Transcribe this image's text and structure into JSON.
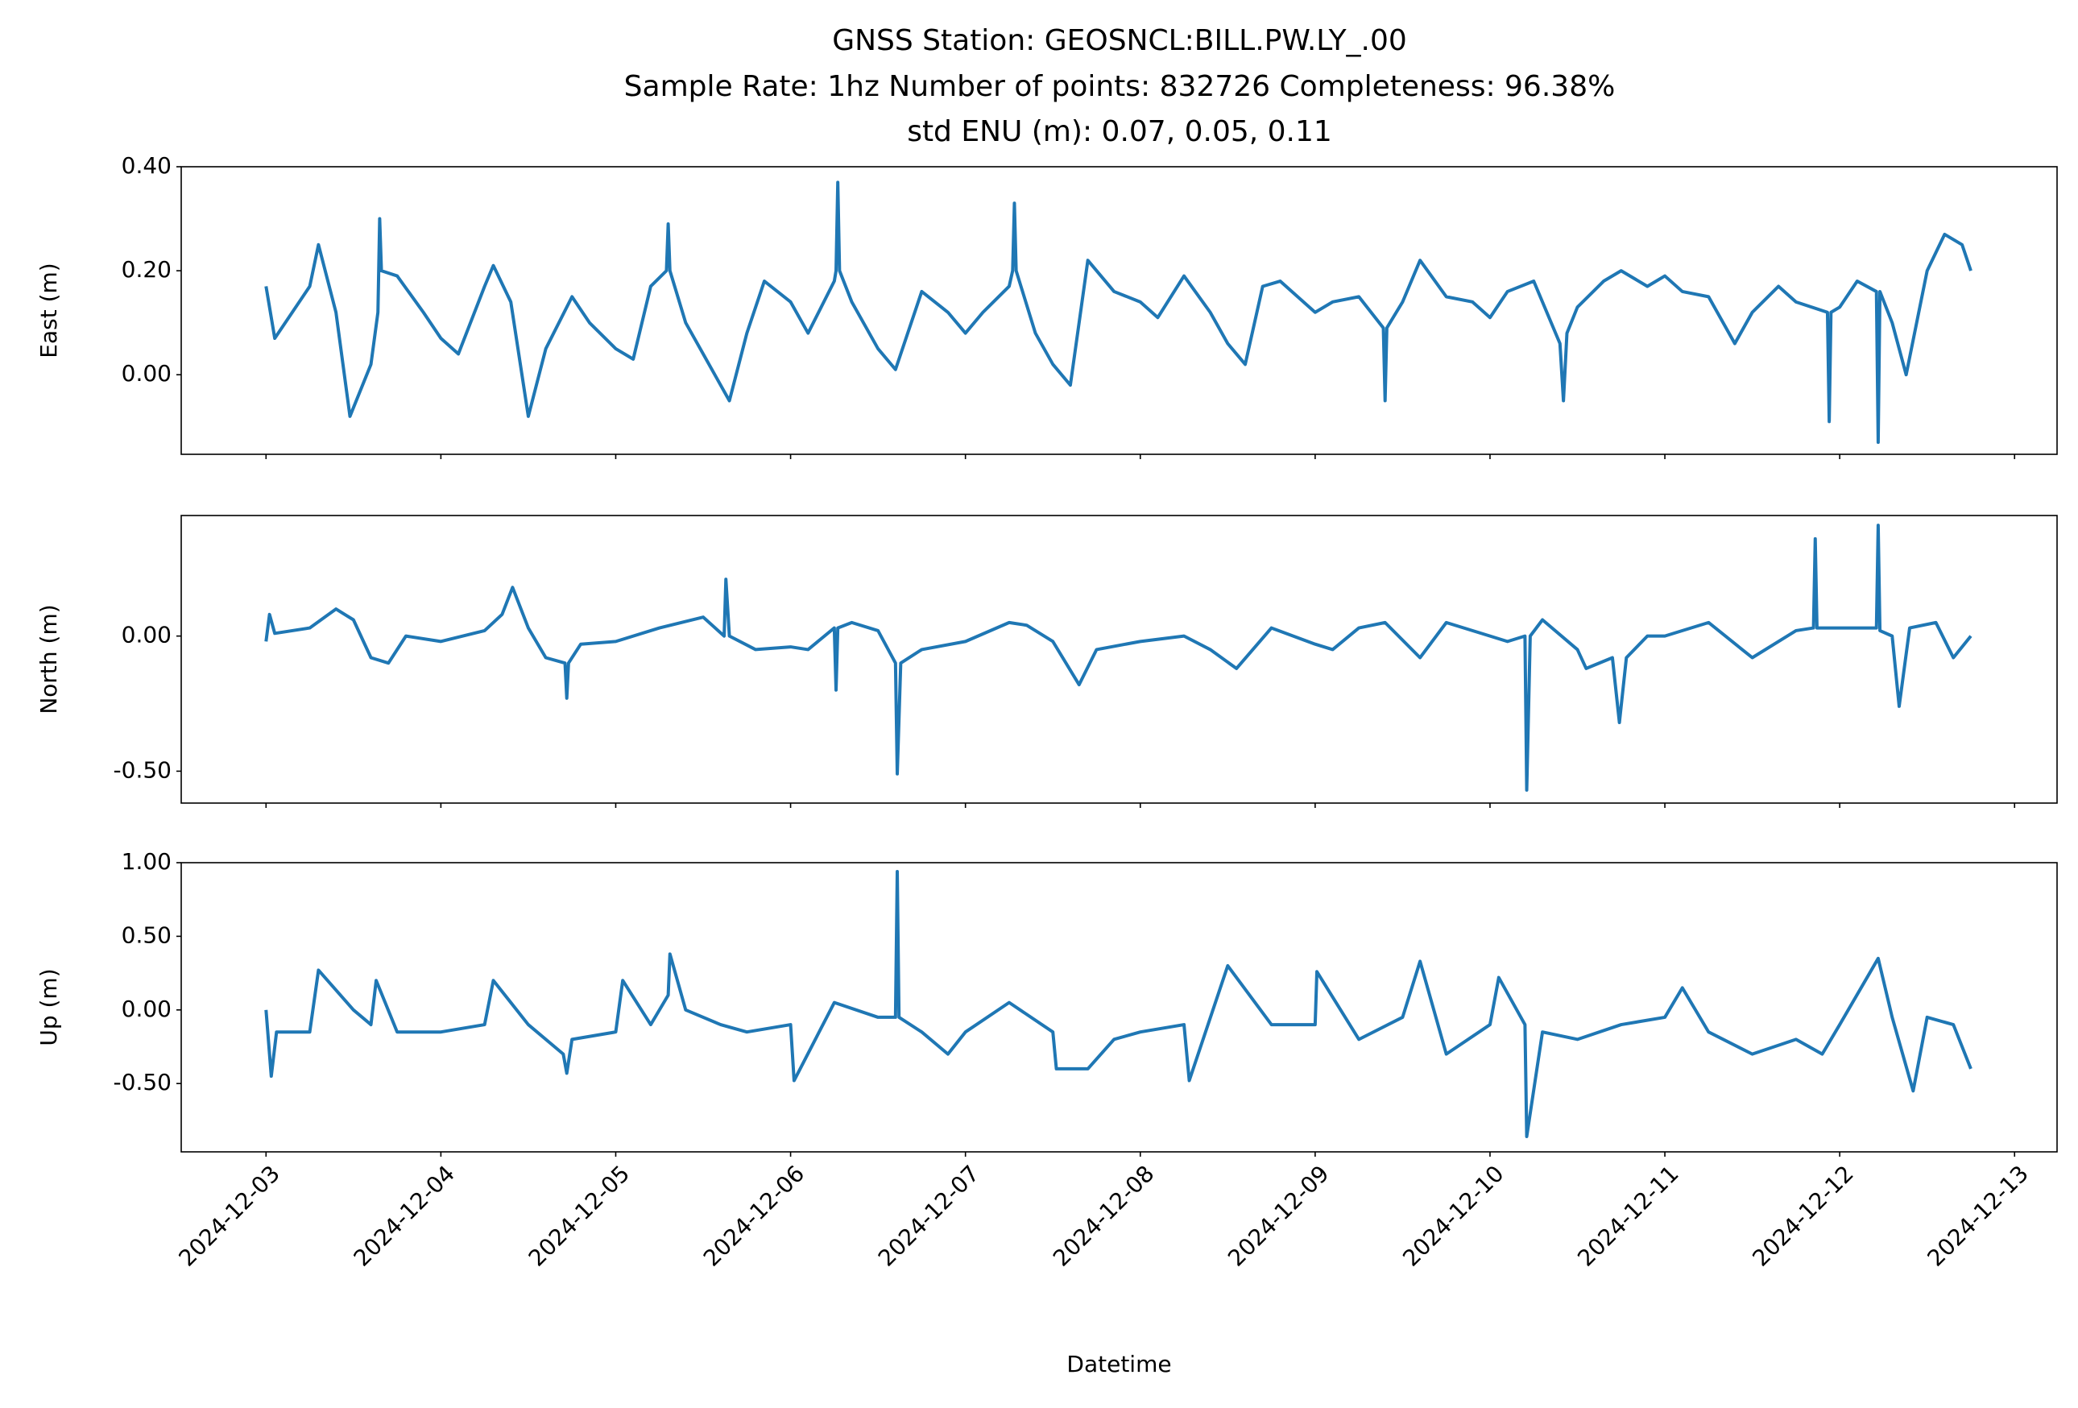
{
  "title": [
    "GNSS Station: GEOSNCL:BILL.PW.LY_.00",
    "Sample Rate: 1hz   Number of points: 832726    Completeness:  96.38%",
    "std ENU (m):  0.07, 0.05, 0.11"
  ],
  "chart_data": [
    {
      "type": "line",
      "y_label": "East (m)",
      "x": [
        0,
        0.05,
        0.25,
        0.3,
        0.4,
        0.48,
        0.6,
        0.64,
        0.65,
        0.66,
        0.75,
        0.9,
        1.0,
        1.1,
        1.25,
        1.3,
        1.4,
        1.5,
        1.6,
        1.75,
        1.85,
        2.0,
        2.1,
        2.2,
        2.29,
        2.3,
        2.31,
        2.4,
        2.5,
        2.65,
        2.75,
        2.85,
        3.0,
        3.1,
        3.25,
        3.26,
        3.27,
        3.28,
        3.35,
        3.5,
        3.6,
        3.75,
        3.9,
        4.0,
        4.1,
        4.25,
        4.27,
        4.28,
        4.29,
        4.4,
        4.5,
        4.6,
        4.7,
        4.85,
        5.0,
        5.1,
        5.25,
        5.4,
        5.5,
        5.6,
        5.7,
        5.8,
        6.0,
        6.1,
        6.25,
        6.39,
        6.4,
        6.41,
        6.5,
        6.6,
        6.75,
        6.9,
        7.0,
        7.1,
        7.25,
        7.4,
        7.42,
        7.44,
        7.5,
        7.65,
        7.75,
        7.9,
        8.0,
        8.1,
        8.25,
        8.4,
        8.5,
        8.65,
        8.75,
        8.93,
        8.94,
        8.95,
        9.0,
        9.1,
        9.21,
        9.22,
        9.23,
        9.3,
        9.38,
        9.5,
        9.6,
        9.7,
        9.75
      ],
      "series": [
        {
          "color": "#1f77b4",
          "values": [
            0.17,
            0.07,
            0.17,
            0.25,
            0.12,
            -0.08,
            0.02,
            0.12,
            0.3,
            0.2,
            0.19,
            0.12,
            0.07,
            0.04,
            0.17,
            0.21,
            0.14,
            -0.08,
            0.05,
            0.15,
            0.1,
            0.05,
            0.03,
            0.17,
            0.2,
            0.29,
            0.2,
            0.1,
            0.04,
            -0.05,
            0.08,
            0.18,
            0.14,
            0.08,
            0.18,
            0.2,
            0.37,
            0.2,
            0.14,
            0.05,
            0.01,
            0.16,
            0.12,
            0.08,
            0.12,
            0.17,
            0.2,
            0.33,
            0.2,
            0.08,
            0.02,
            -0.02,
            0.22,
            0.16,
            0.14,
            0.11,
            0.19,
            0.12,
            0.06,
            0.02,
            0.17,
            0.18,
            0.12,
            0.14,
            0.15,
            0.09,
            -0.05,
            0.09,
            0.14,
            0.22,
            0.15,
            0.14,
            0.11,
            0.16,
            0.18,
            0.06,
            -0.05,
            0.08,
            0.13,
            0.18,
            0.2,
            0.17,
            0.19,
            0.16,
            0.15,
            0.06,
            0.12,
            0.17,
            0.14,
            0.12,
            -0.09,
            0.12,
            0.13,
            0.18,
            0.16,
            -0.13,
            0.16,
            0.1,
            0.0,
            0.2,
            0.27,
            0.25,
            0.2
          ]
        }
      ],
      "ylim": [
        -0.153,
        0.4
      ],
      "yticks": [
        {
          "value": 0,
          "label": "0.00"
        },
        {
          "value": 0.2,
          "label": "0.20"
        },
        {
          "value": 0.4,
          "label": "0.40"
        }
      ]
    },
    {
      "type": "line",
      "y_label": "North (m)",
      "x": [
        0,
        0.02,
        0.05,
        0.25,
        0.4,
        0.5,
        0.6,
        0.7,
        0.8,
        1.0,
        1.25,
        1.35,
        1.41,
        1.5,
        1.6,
        1.71,
        1.72,
        1.73,
        1.8,
        2.0,
        2.25,
        2.5,
        2.62,
        2.63,
        2.65,
        2.8,
        3.0,
        3.1,
        3.25,
        3.26,
        3.27,
        3.35,
        3.5,
        3.6,
        3.61,
        3.63,
        3.75,
        4.0,
        4.25,
        4.35,
        4.5,
        4.65,
        4.75,
        5.0,
        5.25,
        5.4,
        5.55,
        5.75,
        6.0,
        6.1,
        6.25,
        6.4,
        6.6,
        6.75,
        7.0,
        7.1,
        7.2,
        7.21,
        7.23,
        7.3,
        7.5,
        7.55,
        7.7,
        7.74,
        7.78,
        7.9,
        8.0,
        8.25,
        8.5,
        8.75,
        8.85,
        8.86,
        8.87,
        9.0,
        9.21,
        9.22,
        9.23,
        9.3,
        9.34,
        9.4,
        9.55,
        9.65,
        9.75
      ],
      "series": [
        {
          "color": "#1f77b4",
          "values": [
            -0.02,
            0.08,
            0.01,
            0.03,
            0.1,
            0.06,
            -0.08,
            -0.1,
            0.0,
            -0.02,
            0.02,
            0.08,
            0.18,
            0.03,
            -0.08,
            -0.1,
            -0.23,
            -0.1,
            -0.03,
            -0.02,
            0.03,
            0.07,
            0.0,
            0.21,
            0.0,
            -0.05,
            -0.04,
            -0.05,
            0.03,
            -0.2,
            0.03,
            0.05,
            0.02,
            -0.1,
            -0.51,
            -0.1,
            -0.05,
            -0.02,
            0.05,
            0.04,
            -0.02,
            -0.18,
            -0.05,
            -0.02,
            0.0,
            -0.05,
            -0.12,
            0.03,
            -0.03,
            -0.05,
            0.03,
            0.05,
            -0.08,
            0.05,
            0.0,
            -0.02,
            0.0,
            -0.57,
            0.0,
            0.06,
            -0.05,
            -0.12,
            -0.08,
            -0.32,
            -0.08,
            0.0,
            0.0,
            0.05,
            -0.08,
            0.02,
            0.03,
            0.36,
            0.03,
            0.03,
            0.03,
            0.41,
            0.02,
            0.0,
            -0.26,
            0.03,
            0.05,
            -0.08,
            0.0
          ]
        }
      ],
      "ylim": [
        -0.618,
        0.446
      ],
      "yticks": [
        {
          "value": -0.5,
          "label": "-0.50"
        },
        {
          "value": 0,
          "label": "0.00"
        }
      ]
    },
    {
      "type": "line",
      "y_label": "Up (m)",
      "x_label": "Datetime",
      "x": [
        0,
        0.03,
        0.06,
        0.25,
        0.3,
        0.5,
        0.6,
        0.63,
        0.75,
        1.0,
        1.25,
        1.3,
        1.5,
        1.7,
        1.72,
        1.75,
        2.0,
        2.04,
        2.2,
        2.3,
        2.31,
        2.4,
        2.6,
        2.75,
        3.0,
        3.02,
        3.25,
        3.5,
        3.6,
        3.61,
        3.62,
        3.75,
        3.9,
        4.0,
        4.25,
        4.5,
        4.52,
        4.7,
        4.85,
        5.0,
        5.25,
        5.28,
        5.5,
        5.75,
        6.0,
        6.01,
        6.25,
        6.5,
        6.6,
        6.75,
        7.0,
        7.05,
        7.2,
        7.21,
        7.3,
        7.5,
        7.75,
        8.0,
        8.1,
        8.25,
        8.5,
        8.75,
        8.9,
        9.0,
        9.22,
        9.3,
        9.42,
        9.5,
        9.65,
        9.75
      ],
      "series": [
        {
          "color": "#1f77b4",
          "values": [
            0.0,
            -0.45,
            -0.15,
            -0.15,
            0.27,
            0.0,
            -0.1,
            0.2,
            -0.15,
            -0.15,
            -0.1,
            0.2,
            -0.1,
            -0.3,
            -0.43,
            -0.2,
            -0.15,
            0.2,
            -0.1,
            0.1,
            0.38,
            0.0,
            -0.1,
            -0.15,
            -0.1,
            -0.48,
            0.05,
            -0.05,
            -0.05,
            0.94,
            -0.05,
            -0.15,
            -0.3,
            -0.15,
            0.05,
            -0.15,
            -0.4,
            -0.4,
            -0.2,
            -0.15,
            -0.1,
            -0.48,
            0.3,
            -0.1,
            -0.1,
            0.26,
            -0.2,
            -0.05,
            0.33,
            -0.3,
            -0.1,
            0.22,
            -0.1,
            -0.86,
            -0.15,
            -0.2,
            -0.1,
            -0.05,
            0.15,
            -0.15,
            -0.3,
            -0.2,
            -0.3,
            -0.1,
            0.35,
            -0.05,
            -0.55,
            -0.05,
            -0.1,
            -0.4
          ]
        }
      ],
      "ylim": [
        -0.964,
        1.0
      ],
      "yticks": [
        {
          "value": -0.5,
          "label": "-0.50"
        },
        {
          "value": 0,
          "label": "0.00"
        },
        {
          "value": 0.5,
          "label": "0.50"
        },
        {
          "value": 1.0,
          "label": "1.00"
        }
      ],
      "xlim": [
        -0.485,
        10.243
      ],
      "xticks": [
        {
          "value": 0,
          "label": "2024-12-03"
        },
        {
          "value": 1,
          "label": "2024-12-04"
        },
        {
          "value": 2,
          "label": "2024-12-05"
        },
        {
          "value": 3,
          "label": "2024-12-06"
        },
        {
          "value": 4,
          "label": "2024-12-07"
        },
        {
          "value": 5,
          "label": "2024-12-08"
        },
        {
          "value": 6,
          "label": "2024-12-09"
        },
        {
          "value": 7,
          "label": "2024-12-10"
        },
        {
          "value": 8,
          "label": "2024-12-11"
        },
        {
          "value": 9,
          "label": "2024-12-12"
        },
        {
          "value": 10,
          "label": "2024-12-13"
        }
      ]
    }
  ]
}
